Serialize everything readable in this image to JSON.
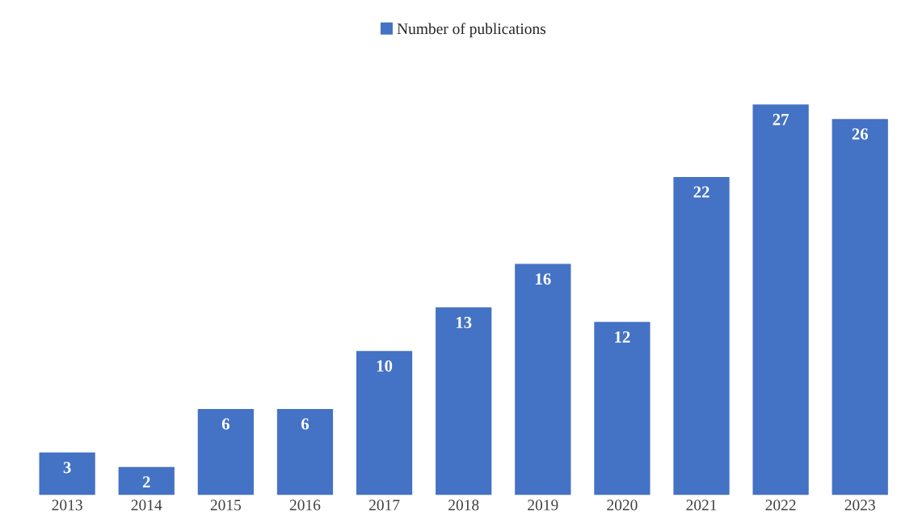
{
  "chart_data": {
    "type": "bar",
    "categories": [
      "2013",
      "2014",
      "2015",
      "2016",
      "2017",
      "2018",
      "2019",
      "2020",
      "2021",
      "2022",
      "2023"
    ],
    "series": [
      {
        "name": "Number of publications",
        "color": "#4472c4",
        "values": [
          3,
          2,
          6,
          6,
          10,
          13,
          16,
          12,
          22,
          27,
          26
        ]
      }
    ],
    "data_labels": true,
    "legend": "top",
    "grid": false
  }
}
